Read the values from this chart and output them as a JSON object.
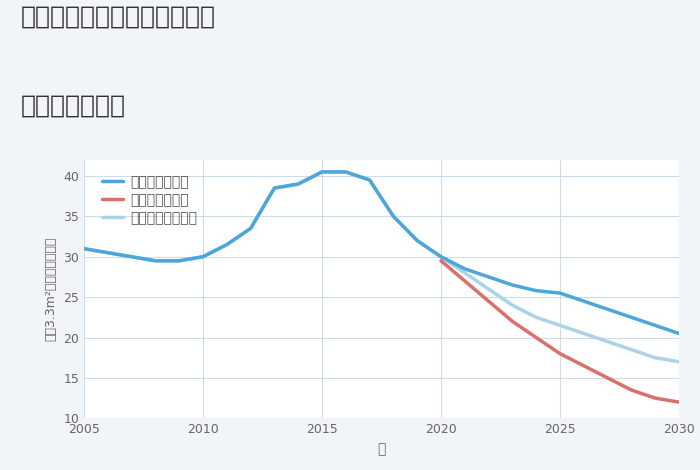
{
  "title_line1": "愛知県江南市宮田神明町旭の",
  "title_line2": "土地の価格推移",
  "xlabel": "年",
  "ylabel": "坪（3.3m²）単価（万円）",
  "background_color": "#f2f5f8",
  "plot_bg_color": "#ffffff",
  "ylim": [
    10,
    42
  ],
  "xlim": [
    2005,
    2030
  ],
  "yticks": [
    10,
    15,
    20,
    25,
    30,
    35,
    40
  ],
  "xticks": [
    2005,
    2010,
    2015,
    2020,
    2025,
    2030
  ],
  "good_scenario": {
    "x": [
      2005,
      2006,
      2007,
      2008,
      2009,
      2010,
      2011,
      2012,
      2013,
      2014,
      2015,
      2016,
      2017,
      2018,
      2019,
      2020,
      2021,
      2022,
      2023,
      2024,
      2025,
      2026,
      2027,
      2028,
      2029,
      2030
    ],
    "y": [
      31.0,
      30.5,
      30.0,
      29.5,
      29.5,
      30.0,
      31.5,
      33.5,
      38.5,
      39.0,
      40.5,
      40.5,
      39.5,
      35.0,
      32.0,
      30.0,
      28.5,
      27.5,
      26.5,
      25.8,
      25.5,
      24.5,
      23.5,
      22.5,
      21.5,
      20.5
    ],
    "color": "#4da6d9",
    "label": "グッドシナリオ",
    "linewidth": 2.5
  },
  "bad_scenario": {
    "x": [
      2020,
      2021,
      2022,
      2023,
      2024,
      2025,
      2026,
      2027,
      2028,
      2029,
      2030
    ],
    "y": [
      29.5,
      27.0,
      24.5,
      22.0,
      20.0,
      18.0,
      16.5,
      15.0,
      13.5,
      12.5,
      12.0
    ],
    "color": "#d9706a",
    "label": "バッドシナリオ",
    "linewidth": 2.5
  },
  "normal_scenario": {
    "x": [
      2005,
      2006,
      2007,
      2008,
      2009,
      2010,
      2011,
      2012,
      2013,
      2014,
      2015,
      2016,
      2017,
      2018,
      2019,
      2020,
      2021,
      2022,
      2023,
      2024,
      2025,
      2026,
      2027,
      2028,
      2029,
      2030
    ],
    "y": [
      31.0,
      30.5,
      30.0,
      29.5,
      29.5,
      30.0,
      31.5,
      33.5,
      38.5,
      39.0,
      40.5,
      40.5,
      39.5,
      35.0,
      32.0,
      30.0,
      28.0,
      26.0,
      24.0,
      22.5,
      21.5,
      20.5,
      19.5,
      18.5,
      17.5,
      17.0
    ],
    "color": "#a8d4e6",
    "label": "ノーマルシナリオ",
    "linewidth": 2.5
  },
  "legend_fontsize": 10,
  "title_fontsize": 18,
  "axis_fontsize": 10,
  "tick_fontsize": 9,
  "grid_color": "#c8d8e8",
  "grid_alpha": 0.9
}
